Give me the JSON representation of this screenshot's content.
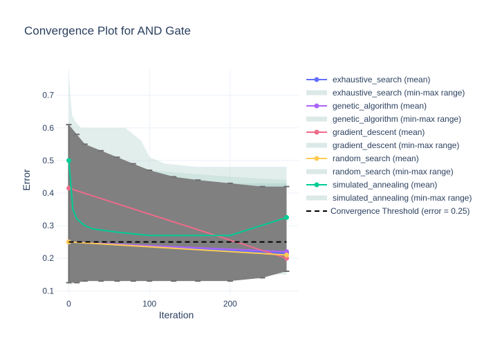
{
  "chart_data": {
    "type": "line",
    "title": "Convergence Plot for AND Gate",
    "xlabel": "Iteration",
    "ylabel": "Error",
    "xlim": [
      -15,
      285
    ],
    "ylim": [
      0.09,
      0.78
    ],
    "x_ticks": [
      0,
      100,
      200
    ],
    "y_ticks": [
      0.1,
      0.2,
      0.3,
      0.4,
      0.5,
      0.6,
      0.7
    ],
    "x_tick_labels": [
      "0",
      "100",
      "200"
    ],
    "y_tick_labels": [
      "0.1",
      "0.2",
      "0.3",
      "0.4",
      "0.5",
      "0.6",
      "0.7"
    ],
    "grid": true,
    "legend_position": "right",
    "series": [
      {
        "name": "exhaustive_search (mean)",
        "kind": "line",
        "color": "#636efa",
        "x": [
          0,
          270
        ],
        "y": [
          0.25,
          0.215
        ]
      },
      {
        "name": "exhaustive_search (min-max range)",
        "kind": "band",
        "color": "#b7d4cf",
        "x": [
          0,
          2,
          4,
          8,
          15,
          40,
          70,
          90,
          100,
          120,
          160,
          200,
          240,
          270
        ],
        "upper": [
          0.77,
          0.7,
          0.64,
          0.62,
          0.6,
          0.6,
          0.6,
          0.56,
          0.51,
          0.49,
          0.48,
          0.48,
          0.48,
          0.48
        ],
        "lower": [
          0.12,
          0.12,
          0.12,
          0.125,
          0.13,
          0.13,
          0.13,
          0.13,
          0.13,
          0.13,
          0.13,
          0.14,
          0.15,
          0.15
        ]
      },
      {
        "name": "genetic_algorithm (mean)",
        "kind": "line",
        "color": "#ab63fa",
        "x": [
          0,
          270
        ],
        "y": [
          0.25,
          0.22
        ]
      },
      {
        "name": "genetic_algorithm (min-max range)",
        "kind": "band",
        "color": "#b7d4cf",
        "x": [
          0,
          50,
          100,
          150,
          200,
          270
        ],
        "upper": [
          0.55,
          0.5,
          0.47,
          0.46,
          0.45,
          0.44
        ],
        "lower": [
          0.14,
          0.14,
          0.15,
          0.15,
          0.15,
          0.16
        ]
      },
      {
        "name": "gradient_descent (mean)",
        "kind": "line",
        "color": "#ef6b8a",
        "x": [
          0,
          270
        ],
        "y": [
          0.415,
          0.2
        ]
      },
      {
        "name": "gradient_descent (min-max range)",
        "kind": "band",
        "color": "#b7d4cf",
        "x": [
          0,
          50,
          100,
          150,
          200,
          270
        ],
        "upper": [
          0.42,
          0.42,
          0.42,
          0.42,
          0.42,
          0.42
        ],
        "lower": [
          0.16,
          0.16,
          0.16,
          0.17,
          0.17,
          0.17
        ]
      },
      {
        "name": "random_search (mean)",
        "kind": "line",
        "color": "#fecb52",
        "x": [
          0,
          270
        ],
        "y": [
          0.25,
          0.21
        ]
      },
      {
        "name": "random_search (min-max range)",
        "kind": "band",
        "color": "#b7d4cf",
        "x": [
          0,
          50,
          100,
          150,
          200,
          270
        ],
        "upper": [
          0.46,
          0.44,
          0.43,
          0.43,
          0.43,
          0.43
        ],
        "lower": [
          0.15,
          0.15,
          0.15,
          0.16,
          0.16,
          0.16
        ]
      },
      {
        "name": "simulated_annealing (mean)",
        "kind": "line",
        "color": "#00cc96",
        "x": [
          0,
          5,
          10,
          20,
          30,
          60,
          100,
          150,
          200,
          270
        ],
        "y": [
          0.5,
          0.35,
          0.32,
          0.3,
          0.29,
          0.28,
          0.27,
          0.27,
          0.27,
          0.325
        ]
      },
      {
        "name": "simulated_annealing (min-max range)",
        "kind": "band",
        "color": "#b7d4cf",
        "x": [
          0,
          50,
          100,
          150,
          200,
          270
        ],
        "upper": [
          0.52,
          0.45,
          0.44,
          0.43,
          0.43,
          0.43
        ],
        "lower": [
          0.17,
          0.17,
          0.17,
          0.17,
          0.17,
          0.17
        ]
      },
      {
        "name": "Convergence Threshold (error = 0.25)",
        "kind": "hline",
        "color": "#000000",
        "x": [
          0,
          270
        ],
        "y": [
          0.25,
          0.25
        ]
      }
    ],
    "error_band": {
      "color": "#808080",
      "x": [
        0,
        10,
        20,
        40,
        60,
        80,
        100,
        130,
        160,
        200,
        240,
        270
      ],
      "upper": [
        0.61,
        0.58,
        0.55,
        0.53,
        0.51,
        0.49,
        0.47,
        0.45,
        0.44,
        0.43,
        0.42,
        0.42
      ],
      "lower": [
        0.125,
        0.125,
        0.13,
        0.13,
        0.13,
        0.13,
        0.13,
        0.13,
        0.13,
        0.13,
        0.14,
        0.16
      ]
    }
  }
}
